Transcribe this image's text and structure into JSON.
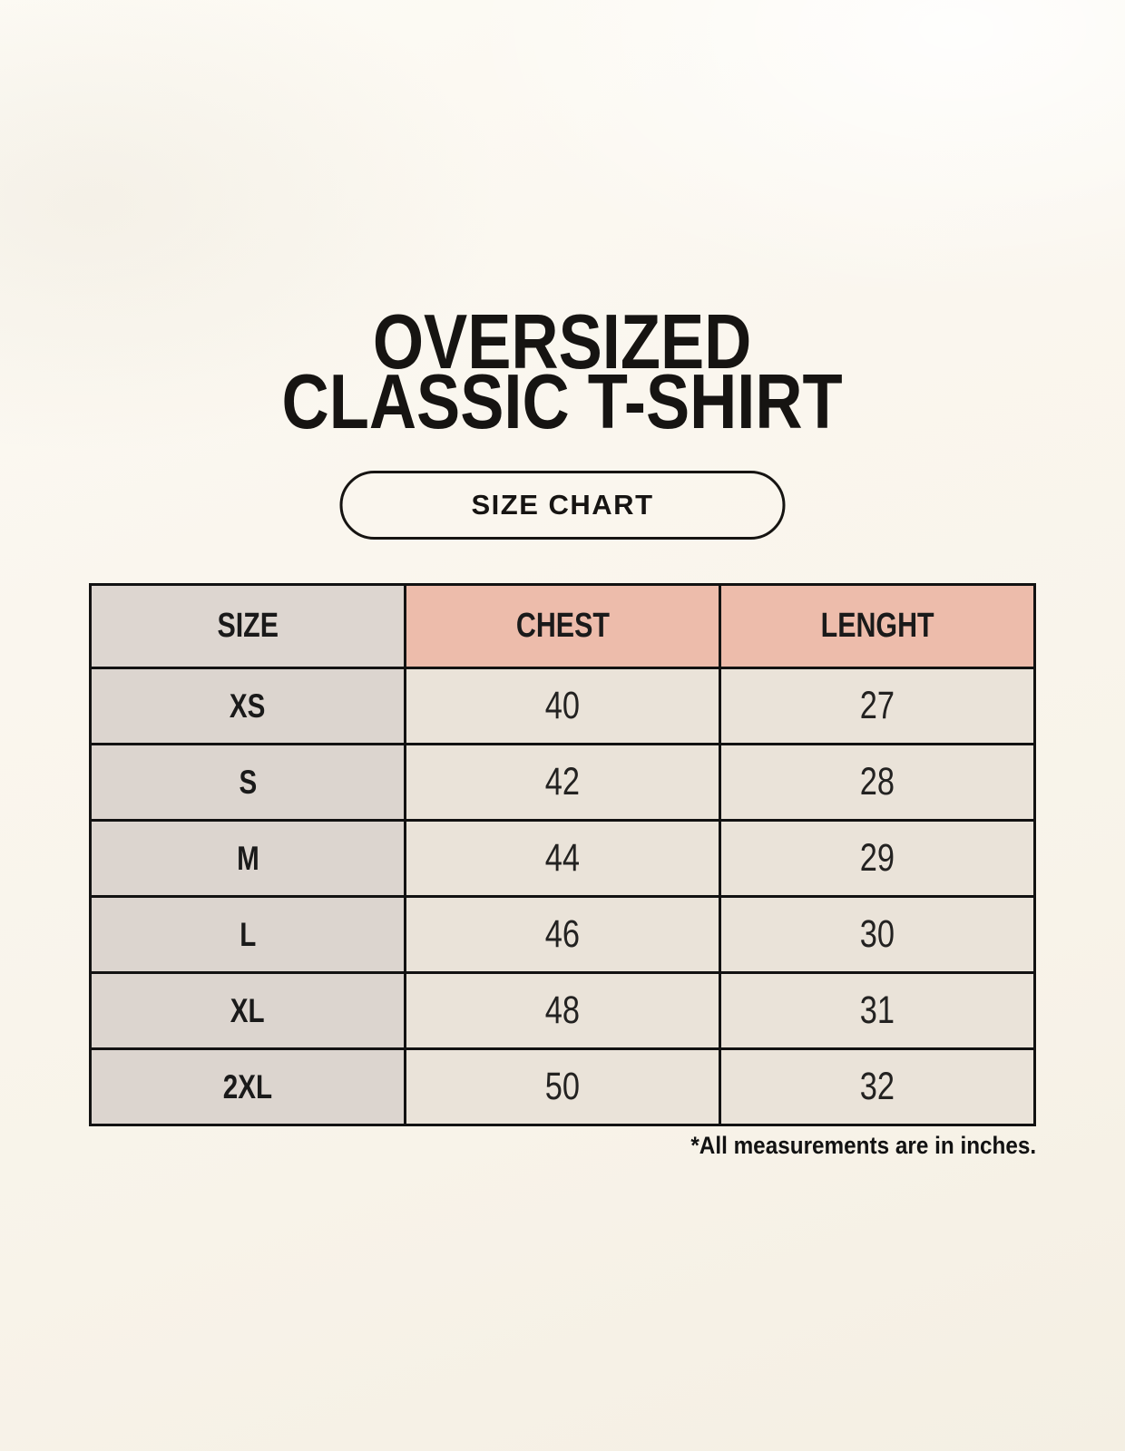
{
  "page": {
    "title_line1": "OVERSIZED",
    "title_line2": "CLASSIC T-SHIRT",
    "badge_label": "SIZE CHART",
    "footnote": "*All measurements are in inches."
  },
  "table": {
    "headers": [
      "SIZE",
      "CHEST",
      "LENGHT"
    ],
    "rows": [
      {
        "size": "XS",
        "chest": "40",
        "length": "27"
      },
      {
        "size": "S",
        "chest": "42",
        "length": "28"
      },
      {
        "size": "M",
        "chest": "44",
        "length": "29"
      },
      {
        "size": "L",
        "chest": "46",
        "length": "30"
      },
      {
        "size": "XL",
        "chest": "48",
        "length": "31"
      },
      {
        "size": "2XL",
        "chest": "50",
        "length": "32"
      }
    ]
  },
  "chart_data": {
    "type": "table",
    "title": "OVERSIZED CLASSIC T-SHIRT — SIZE CHART",
    "columns": [
      "SIZE",
      "CHEST",
      "LENGHT"
    ],
    "units": "inches",
    "rows": [
      [
        "XS",
        40,
        27
      ],
      [
        "S",
        42,
        28
      ],
      [
        "M",
        44,
        29
      ],
      [
        "L",
        46,
        30
      ],
      [
        "XL",
        48,
        31
      ],
      [
        "2XL",
        50,
        32
      ]
    ]
  },
  "colors": {
    "background": "#f9f5ec",
    "header_size_bg": "#ddd6d0",
    "header_measure_bg": "#edbcab",
    "row_label_bg": "#dcd5cf",
    "cell_bg": "#eae3d9",
    "border": "#121212",
    "text": "#1a1a1a"
  }
}
